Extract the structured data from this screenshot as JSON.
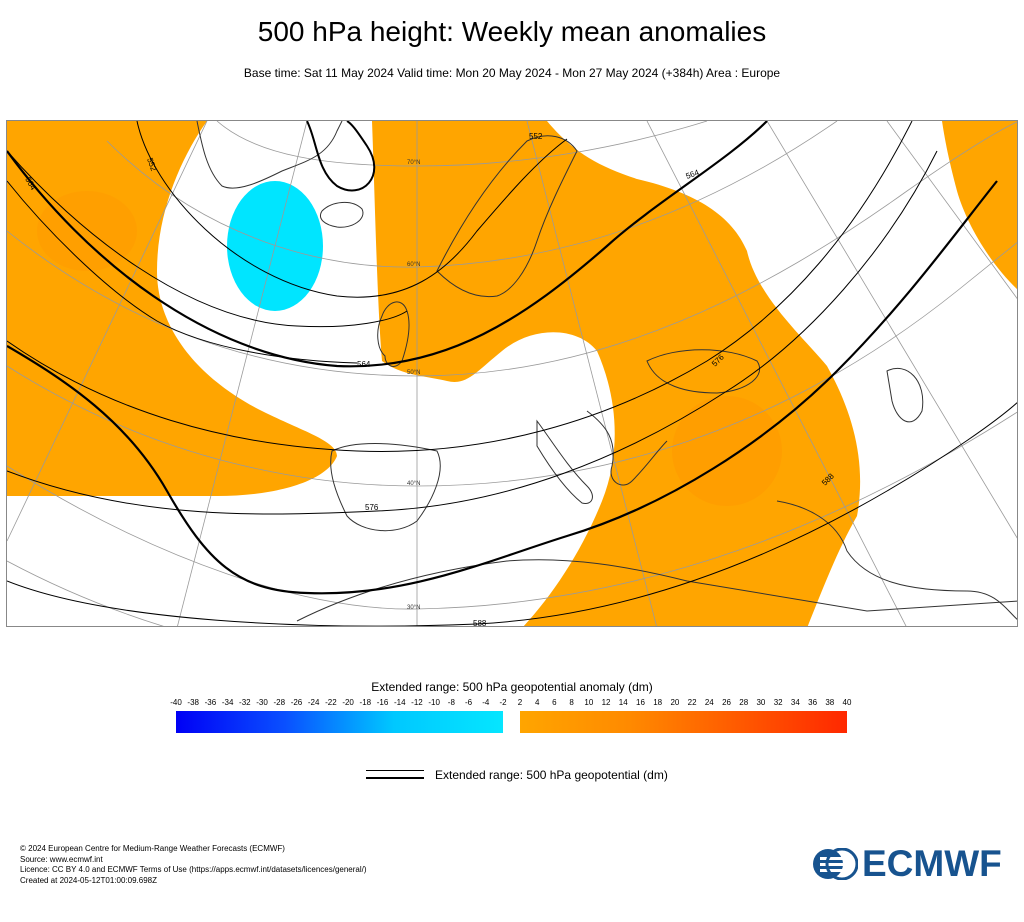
{
  "title": "500 hPa height: Weekly mean anomalies",
  "subtitle": "Base time: Sat 11 May 2024 Valid time: Mon 20 May 2024 - Mon 27 May 2024 (+384h) Area : Europe",
  "map": {
    "region": "Europe",
    "latitude_labels": [
      "70°N",
      "60°N",
      "50°N",
      "40°N",
      "30°N"
    ],
    "contour_labels": [
      "552",
      "552",
      "564",
      "564",
      "576",
      "576",
      "588",
      "588",
      "564"
    ],
    "colors": {
      "positive_anomaly": "#ffa500",
      "negative_anomaly": "#00e5ff",
      "coast": "#333333",
      "contour": "#000000",
      "graticule": "#999999"
    }
  },
  "legend": {
    "title": "Extended range: 500 hPa geopotential anomaly (dm)",
    "negative_ticks": [
      "-40",
      "-38",
      "-36",
      "-34",
      "-32",
      "-30",
      "-28",
      "-26",
      "-24",
      "-22",
      "-20",
      "-18",
      "-16",
      "-14",
      "-12",
      "-10",
      "-8",
      "-6",
      "-4",
      "-2"
    ],
    "positive_ticks": [
      "2",
      "4",
      "6",
      "8",
      "10",
      "12",
      "14",
      "16",
      "18",
      "20",
      "22",
      "24",
      "26",
      "28",
      "30",
      "32",
      "34",
      "36",
      "38",
      "40"
    ],
    "line_label": "Extended range: 500 hPa geopotential (dm)"
  },
  "footer": {
    "lines": [
      "© 2024 European Centre for Medium-Range Weather Forecasts (ECMWF)",
      "Source: www.ecmwf.int",
      "Licence: CC BY 4.0 and ECMWF Terms of Use (https://apps.ecmwf.int/datasets/licences/general/)",
      "Created at 2024-05-12T01:00:09.698Z"
    ]
  },
  "logo": {
    "text": "ECMWF",
    "color": "#17538f",
    "icon": "ecmwf-logo-icon"
  }
}
